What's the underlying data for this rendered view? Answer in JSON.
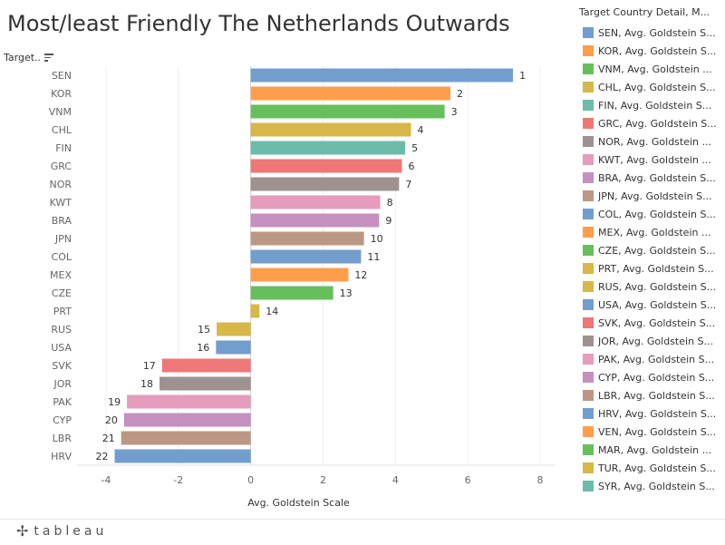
{
  "title": "Most/least Friendly The Netherlands Outwards",
  "footer": {
    "brand": "tableau"
  },
  "legend": {
    "title": "Target Country Detail, M..."
  },
  "chart_data": {
    "type": "bar",
    "orientation": "horizontal",
    "ylabel": "Target..",
    "xlabel": "Avg. Goldstein Scale",
    "xlim": [
      -4.8,
      8.4
    ],
    "xticks": [
      -4,
      -2,
      0,
      2,
      4,
      6,
      8
    ],
    "grid": true,
    "legend_placement": "right",
    "categories": [
      "SEN",
      "KOR",
      "VNM",
      "CHL",
      "FIN",
      "GRC",
      "NOR",
      "KWT",
      "BRA",
      "JPN",
      "COL",
      "MEX",
      "CZE",
      "PRT",
      "RUS",
      "USA",
      "SVK",
      "JOR",
      "PAK",
      "CYP",
      "LBR",
      "HRV"
    ],
    "values": [
      7.25,
      5.52,
      5.36,
      4.43,
      4.27,
      4.18,
      4.1,
      3.58,
      3.55,
      3.13,
      3.05,
      2.7,
      2.28,
      0.24,
      -0.94,
      -0.96,
      -2.45,
      -2.52,
      -3.42,
      -3.5,
      -3.58,
      -3.76
    ],
    "rank_labels": [
      "1",
      "2",
      "3",
      "4",
      "5",
      "6",
      "7",
      "8",
      "9",
      "10",
      "11",
      "12",
      "13",
      "14",
      "15",
      "16",
      "17",
      "18",
      "19",
      "20",
      "21",
      "22"
    ],
    "colors": [
      "#729ece",
      "#ff9e4a",
      "#67bf5c",
      "#d6b748",
      "#6dbba9",
      "#f07777",
      "#9e9290",
      "#e69cbc",
      "#c590bf",
      "#bc9784",
      "#729ece",
      "#ff9e4a",
      "#67bf5c",
      "#d6b748",
      "#d6b748",
      "#729ece",
      "#f07777",
      "#9e9290",
      "#e69cbc",
      "#c590bf",
      "#bc9784",
      "#729ece"
    ],
    "legend_entries": [
      {
        "label": "SEN, Avg. Goldstein S...",
        "color": "#729ece"
      },
      {
        "label": "KOR, Avg. Goldstein S...",
        "color": "#ff9e4a"
      },
      {
        "label": "VNM, Avg. Goldstein ...",
        "color": "#67bf5c"
      },
      {
        "label": "CHL, Avg. Goldstein S...",
        "color": "#d6b748"
      },
      {
        "label": "FIN, Avg. Goldstein S...",
        "color": "#6dbba9"
      },
      {
        "label": "GRC, Avg. Goldstein S...",
        "color": "#f07777"
      },
      {
        "label": "NOR, Avg. Goldstein ...",
        "color": "#9e9290"
      },
      {
        "label": "KWT, Avg. Goldstein ...",
        "color": "#e69cbc"
      },
      {
        "label": "BRA, Avg. Goldstein S...",
        "color": "#c590bf"
      },
      {
        "label": "JPN, Avg. Goldstein S...",
        "color": "#bc9784"
      },
      {
        "label": "COL, Avg. Goldstein S...",
        "color": "#729ece"
      },
      {
        "label": "MEX, Avg. Goldstein ...",
        "color": "#ff9e4a"
      },
      {
        "label": "CZE, Avg. Goldstein S...",
        "color": "#67bf5c"
      },
      {
        "label": "PRT, Avg. Goldstein S...",
        "color": "#d6b748"
      },
      {
        "label": "RUS, Avg. Goldstein S...",
        "color": "#d6b748"
      },
      {
        "label": "USA, Avg. Goldstein S...",
        "color": "#729ece"
      },
      {
        "label": "SVK, Avg. Goldstein S...",
        "color": "#f07777"
      },
      {
        "label": "JOR, Avg. Goldstein S...",
        "color": "#9e9290"
      },
      {
        "label": "PAK, Avg. Goldstein S...",
        "color": "#e69cbc"
      },
      {
        "label": "CYP, Avg. Goldstein S...",
        "color": "#c590bf"
      },
      {
        "label": "LBR, Avg. Goldstein S...",
        "color": "#bc9784"
      },
      {
        "label": "HRV, Avg. Goldstein S...",
        "color": "#729ece"
      },
      {
        "label": "VEN, Avg. Goldstein S...",
        "color": "#ff9e4a"
      },
      {
        "label": "MAR, Avg. Goldstein ...",
        "color": "#67bf5c"
      },
      {
        "label": "TUR, Avg. Goldstein S...",
        "color": "#d6b748"
      },
      {
        "label": "SYR, Avg. Goldstein S...",
        "color": "#6dbba9"
      }
    ]
  }
}
